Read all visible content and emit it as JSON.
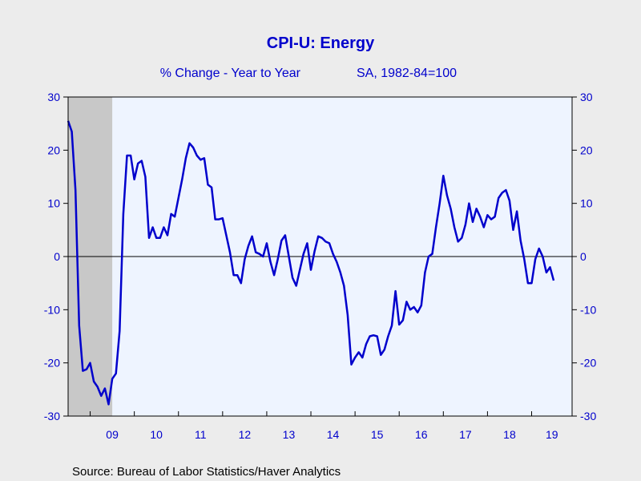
{
  "chart_data": {
    "type": "line",
    "title": "CPI-U: Energy",
    "subtitle_left": "% Change - Year to Year",
    "subtitle_right": "SA, 1982-84=100",
    "source": "Source:  Bureau of Labor Statistics/Haver Analytics",
    "xlabel": "",
    "ylabel": "",
    "ylim": [
      -30,
      30
    ],
    "y_ticks": [
      "30",
      "20",
      "10",
      "0",
      "-10",
      "-20",
      "-30"
    ],
    "y_tick_values": [
      30,
      20,
      10,
      0,
      -10,
      -20,
      -30
    ],
    "x_tick_labels": [
      "09",
      "10",
      "11",
      "12",
      "13",
      "14",
      "15",
      "16",
      "17",
      "18",
      "19"
    ],
    "x_range": [
      "2008-07",
      "2019-12"
    ],
    "recession_shading": {
      "start": "2008-07",
      "end": "2009-06",
      "color": "#C8C8C8"
    },
    "zero_line": true,
    "line_color": "#0000CC",
    "plot_background": "#EEF4FF",
    "series": [
      {
        "values": [
          {
            "x": "2008-07",
            "y": 25.5
          },
          {
            "x": "2008-08",
            "y": 23.5
          },
          {
            "x": "2008-09",
            "y": 12.5
          },
          {
            "x": "2008-10",
            "y": -13.0
          },
          {
            "x": "2008-11",
            "y": -21.5
          },
          {
            "x": "2008-12",
            "y": -21.2
          },
          {
            "x": "2009-01",
            "y": -20.0
          },
          {
            "x": "2009-02",
            "y": -23.5
          },
          {
            "x": "2009-03",
            "y": -24.5
          },
          {
            "x": "2009-04",
            "y": -26.2
          },
          {
            "x": "2009-05",
            "y": -24.8
          },
          {
            "x": "2009-06",
            "y": -27.8
          },
          {
            "x": "2009-07",
            "y": -23.0
          },
          {
            "x": "2009-08",
            "y": -22.0
          },
          {
            "x": "2009-09",
            "y": -14.0
          },
          {
            "x": "2009-10",
            "y": 8.0
          },
          {
            "x": "2009-11",
            "y": 19.0
          },
          {
            "x": "2009-12",
            "y": 19.0
          },
          {
            "x": "2010-01",
            "y": 14.5
          },
          {
            "x": "2010-02",
            "y": 17.5
          },
          {
            "x": "2010-03",
            "y": 18.0
          },
          {
            "x": "2010-04",
            "y": 15.0
          },
          {
            "x": "2010-05",
            "y": 3.5
          },
          {
            "x": "2010-06",
            "y": 5.5
          },
          {
            "x": "2010-07",
            "y": 3.5
          },
          {
            "x": "2010-08",
            "y": 3.5
          },
          {
            "x": "2010-09",
            "y": 5.5
          },
          {
            "x": "2010-10",
            "y": 4.0
          },
          {
            "x": "2010-11",
            "y": 8.0
          },
          {
            "x": "2010-12",
            "y": 7.5
          },
          {
            "x": "2011-01",
            "y": 11.0
          },
          {
            "x": "2011-02",
            "y": 14.5
          },
          {
            "x": "2011-03",
            "y": 18.5
          },
          {
            "x": "2011-04",
            "y": 21.3
          },
          {
            "x": "2011-05",
            "y": 20.5
          },
          {
            "x": "2011-06",
            "y": 19.0
          },
          {
            "x": "2011-07",
            "y": 18.2
          },
          {
            "x": "2011-08",
            "y": 18.5
          },
          {
            "x": "2011-09",
            "y": 13.5
          },
          {
            "x": "2011-10",
            "y": 13.0
          },
          {
            "x": "2011-11",
            "y": 7.0
          },
          {
            "x": "2011-12",
            "y": 7.0
          },
          {
            "x": "2012-01",
            "y": 7.2
          },
          {
            "x": "2012-02",
            "y": 4.0
          },
          {
            "x": "2012-03",
            "y": 0.8
          },
          {
            "x": "2012-04",
            "y": -3.5
          },
          {
            "x": "2012-05",
            "y": -3.5
          },
          {
            "x": "2012-06",
            "y": -5.0
          },
          {
            "x": "2012-07",
            "y": -0.5
          },
          {
            "x": "2012-08",
            "y": 2.0
          },
          {
            "x": "2012-09",
            "y": 3.8
          },
          {
            "x": "2012-10",
            "y": 0.8
          },
          {
            "x": "2012-11",
            "y": 0.5
          },
          {
            "x": "2012-12",
            "y": 0.0
          },
          {
            "x": "2013-01",
            "y": 2.5
          },
          {
            "x": "2013-02",
            "y": -1.0
          },
          {
            "x": "2013-03",
            "y": -3.5
          },
          {
            "x": "2013-04",
            "y": -0.5
          },
          {
            "x": "2013-05",
            "y": 3.0
          },
          {
            "x": "2013-06",
            "y": 4.0
          },
          {
            "x": "2013-07",
            "y": 0.0
          },
          {
            "x": "2013-08",
            "y": -4.0
          },
          {
            "x": "2013-09",
            "y": -5.5
          },
          {
            "x": "2013-10",
            "y": -2.5
          },
          {
            "x": "2013-11",
            "y": 0.5
          },
          {
            "x": "2013-12",
            "y": 2.5
          },
          {
            "x": "2014-01",
            "y": -2.5
          },
          {
            "x": "2014-02",
            "y": 1.0
          },
          {
            "x": "2014-03",
            "y": 3.8
          },
          {
            "x": "2014-04",
            "y": 3.5
          },
          {
            "x": "2014-05",
            "y": 2.8
          },
          {
            "x": "2014-06",
            "y": 2.5
          },
          {
            "x": "2014-07",
            "y": 0.5
          },
          {
            "x": "2014-08",
            "y": -1.0
          },
          {
            "x": "2014-09",
            "y": -3.0
          },
          {
            "x": "2014-10",
            "y": -5.5
          },
          {
            "x": "2014-11",
            "y": -11.0
          },
          {
            "x": "2014-12",
            "y": -20.3
          },
          {
            "x": "2015-01",
            "y": -19.0
          },
          {
            "x": "2015-02",
            "y": -18.0
          },
          {
            "x": "2015-03",
            "y": -19.0
          },
          {
            "x": "2015-04",
            "y": -16.5
          },
          {
            "x": "2015-05",
            "y": -15.0
          },
          {
            "x": "2015-06",
            "y": -14.8
          },
          {
            "x": "2015-07",
            "y": -15.0
          },
          {
            "x": "2015-08",
            "y": -18.5
          },
          {
            "x": "2015-09",
            "y": -17.5
          },
          {
            "x": "2015-10",
            "y": -15.0
          },
          {
            "x": "2015-11",
            "y": -13.0
          },
          {
            "x": "2015-12",
            "y": -6.5
          },
          {
            "x": "2016-01",
            "y": -12.8
          },
          {
            "x": "2016-02",
            "y": -12.0
          },
          {
            "x": "2016-03",
            "y": -8.5
          },
          {
            "x": "2016-04",
            "y": -10.0
          },
          {
            "x": "2016-05",
            "y": -9.5
          },
          {
            "x": "2016-06",
            "y": -10.5
          },
          {
            "x": "2016-07",
            "y": -9.2
          },
          {
            "x": "2016-08",
            "y": -3.0
          },
          {
            "x": "2016-09",
            "y": 0.0
          },
          {
            "x": "2016-10",
            "y": 0.5
          },
          {
            "x": "2016-11",
            "y": 5.5
          },
          {
            "x": "2016-12",
            "y": 10.0
          },
          {
            "x": "2017-01",
            "y": 15.2
          },
          {
            "x": "2017-02",
            "y": 11.5
          },
          {
            "x": "2017-03",
            "y": 9.0
          },
          {
            "x": "2017-04",
            "y": 5.5
          },
          {
            "x": "2017-05",
            "y": 2.8
          },
          {
            "x": "2017-06",
            "y": 3.5
          },
          {
            "x": "2017-07",
            "y": 6.0
          },
          {
            "x": "2017-08",
            "y": 10.0
          },
          {
            "x": "2017-09",
            "y": 6.5
          },
          {
            "x": "2017-10",
            "y": 9.0
          },
          {
            "x": "2017-11",
            "y": 7.5
          },
          {
            "x": "2017-12",
            "y": 5.5
          },
          {
            "x": "2018-01",
            "y": 7.8
          },
          {
            "x": "2018-02",
            "y": 7.0
          },
          {
            "x": "2018-03",
            "y": 7.5
          },
          {
            "x": "2018-04",
            "y": 11.0
          },
          {
            "x": "2018-05",
            "y": 12.0
          },
          {
            "x": "2018-06",
            "y": 12.5
          },
          {
            "x": "2018-07",
            "y": 10.5
          },
          {
            "x": "2018-08",
            "y": 5.0
          },
          {
            "x": "2018-09",
            "y": 8.5
          },
          {
            "x": "2018-10",
            "y": 3.0
          },
          {
            "x": "2018-11",
            "y": -0.5
          },
          {
            "x": "2018-12",
            "y": -5.0
          },
          {
            "x": "2019-01",
            "y": -5.0
          },
          {
            "x": "2019-02",
            "y": -0.5
          },
          {
            "x": "2019-03",
            "y": 1.5
          },
          {
            "x": "2019-04",
            "y": 0.0
          },
          {
            "x": "2019-05",
            "y": -3.0
          },
          {
            "x": "2019-06",
            "y": -2.0
          },
          {
            "x": "2019-07",
            "y": -4.5
          }
        ]
      }
    ]
  }
}
